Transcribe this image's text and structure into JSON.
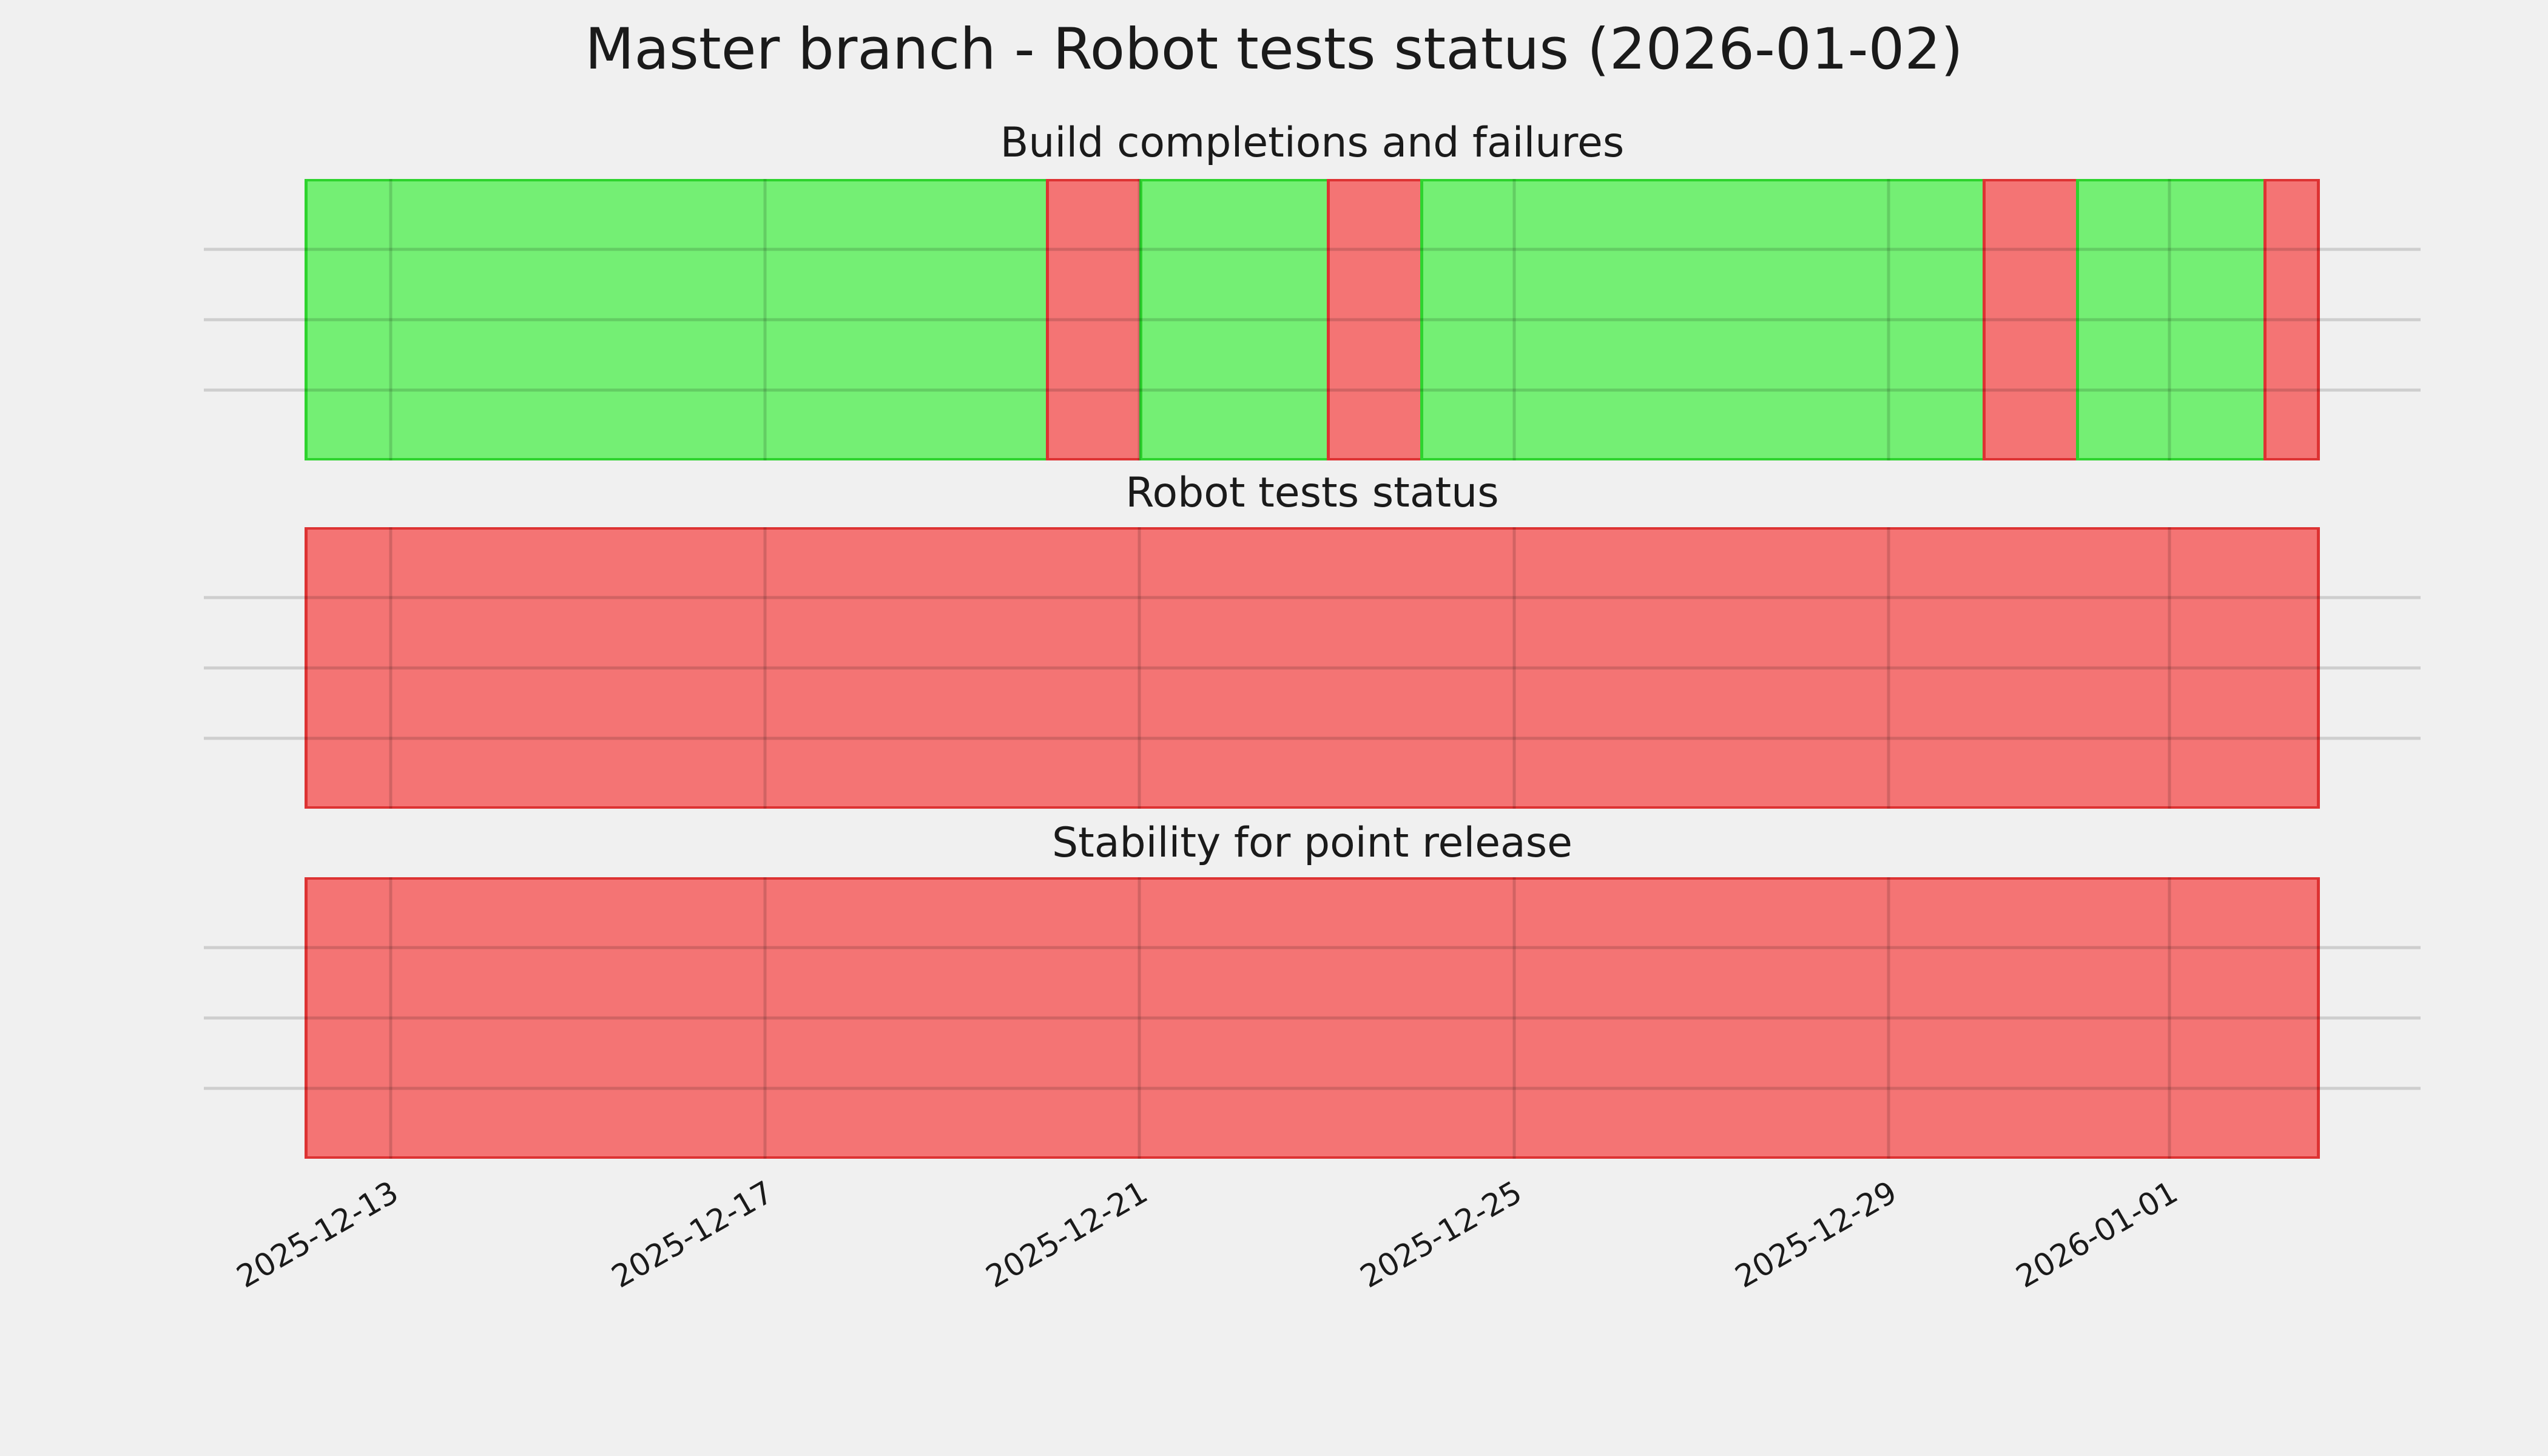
{
  "figure": {
    "title": "Master branch - Robot tests status (2026-01-02)",
    "background_color": "#f0f0f0"
  },
  "chart_data": {
    "type": "timeline-status-bars",
    "title": "Master branch - Robot tests status (2026-01-02)",
    "grid": true,
    "legend": false,
    "x_axis": {
      "start": "2025-12-12T02:00:00",
      "end": "2026-01-02T14:30:00",
      "margin_fraction": 0.05,
      "tick_labels": [
        "2025-12-13",
        "2025-12-17",
        "2025-12-21",
        "2025-12-25",
        "2025-12-29",
        "2026-01-01"
      ],
      "tick_dates": [
        "2025-12-13T00:00:00",
        "2025-12-17T00:00:00",
        "2025-12-21T00:00:00",
        "2025-12-25T00:00:00",
        "2025-12-29T00:00:00",
        "2026-01-01T00:00:00"
      ],
      "tick_rotation_deg": 30
    },
    "y_axis": {
      "tick_labels": [],
      "gridline_rows": 4
    },
    "colors": {
      "success_fill": "#74ef74",
      "success_edge": "#2ed32e",
      "failure_fill": "#f47474",
      "failure_edge": "#dd3333",
      "gridline": "#cbcbcb",
      "background": "#f0f0f0",
      "text": "#1a1a1a"
    },
    "subplots": [
      {
        "title": "Build completions and failures",
        "segments": [
          {
            "start": "2025-12-12T02:00:00",
            "end": "2025-12-20T00:00:00",
            "status": "success"
          },
          {
            "start": "2025-12-20T00:00:00",
            "end": "2025-12-21T00:00:00",
            "status": "failure"
          },
          {
            "start": "2025-12-21T00:00:00",
            "end": "2025-12-23T00:00:00",
            "status": "success"
          },
          {
            "start": "2025-12-23T00:00:00",
            "end": "2025-12-24T00:00:00",
            "status": "failure"
          },
          {
            "start": "2025-12-24T00:00:00",
            "end": "2025-12-30T00:00:00",
            "status": "success"
          },
          {
            "start": "2025-12-30T00:00:00",
            "end": "2025-12-31T00:00:00",
            "status": "failure"
          },
          {
            "start": "2025-12-31T00:00:00",
            "end": "2026-01-02T00:00:00",
            "status": "success"
          },
          {
            "start": "2026-01-02T00:00:00",
            "end": "2026-01-02T14:30:00",
            "status": "failure"
          }
        ]
      },
      {
        "title": "Robot tests status",
        "segments": [
          {
            "start": "2025-12-12T02:00:00",
            "end": "2026-01-02T14:30:00",
            "status": "failure"
          }
        ]
      },
      {
        "title": "Stability for point release",
        "segments": [
          {
            "start": "2025-12-12T02:00:00",
            "end": "2026-01-02T14:30:00",
            "status": "failure"
          }
        ]
      }
    ]
  }
}
